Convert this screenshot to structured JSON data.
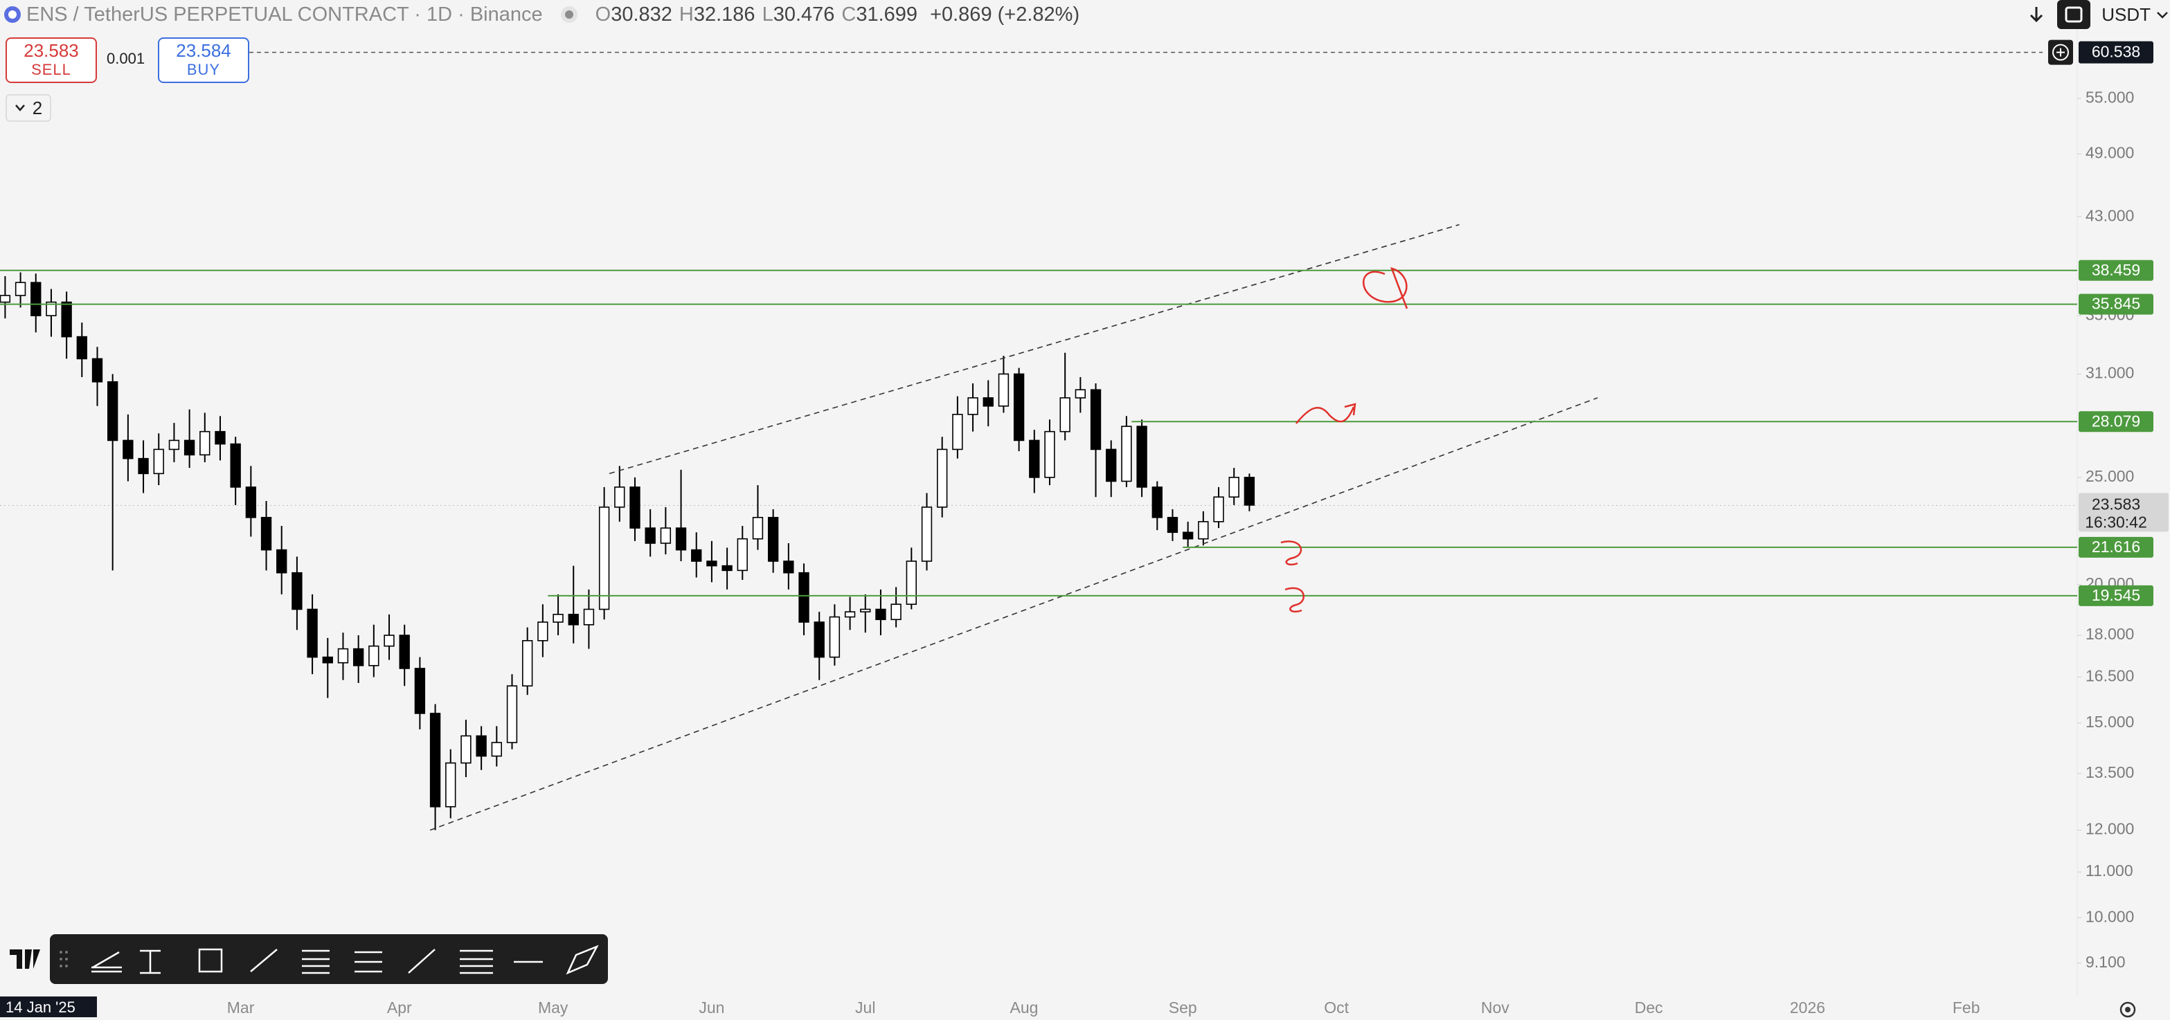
{
  "header": {
    "symbol": "ENS / TetherUS PERPETUAL CONTRACT · 1D · Binance",
    "ohlc": [
      {
        "label": "O",
        "value": "30.832"
      },
      {
        "label": "H",
        "value": "32.186"
      },
      {
        "label": "L",
        "value": "30.476"
      },
      {
        "label": "C",
        "value": "31.699"
      }
    ],
    "change": "+0.869 (+2.82%)",
    "currency": "USDT"
  },
  "order_panel": {
    "sell_price": "23.583",
    "sell_label": "SELL",
    "quantity": "0.001",
    "buy_price": "23.584",
    "buy_label": "BUY"
  },
  "indicator_toggle": "2",
  "chart_data": {
    "type": "candlestick",
    "log_scale": true,
    "grid": false,
    "up_color": "#ffffff",
    "down_color": "#000000",
    "level_color": "#4c9a3e",
    "xlim": [
      "2025-01-13",
      "2026-02-22"
    ],
    "xticks": [
      {
        "value": "2025-01-14",
        "label": "14 Jan '25"
      },
      {
        "value": "2025-03-01",
        "label": "Mar"
      },
      {
        "value": "2025-04-01",
        "label": "Apr"
      },
      {
        "value": "2025-05-01",
        "label": "May"
      },
      {
        "value": "2025-06-01",
        "label": "Jun"
      },
      {
        "value": "2025-07-01",
        "label": "Jul"
      },
      {
        "value": "2025-08-01",
        "label": "Aug"
      },
      {
        "value": "2025-09-01",
        "label": "Sep"
      },
      {
        "value": "2025-10-01",
        "label": "Oct"
      },
      {
        "value": "2025-11-01",
        "label": "Nov"
      },
      {
        "value": "2025-12-01",
        "label": "Dec"
      },
      {
        "value": "2026-01-01",
        "label": "2026"
      },
      {
        "value": "2026-02-01",
        "label": "Feb"
      }
    ],
    "ylim": [
      8.49,
      67.5
    ],
    "yticks": [
      {
        "value": 9.1,
        "label": "9.100"
      },
      {
        "value": 10,
        "label": "10.000"
      },
      {
        "value": 11,
        "label": "11.000"
      },
      {
        "value": 12,
        "label": "12.000"
      },
      {
        "value": 13.5,
        "label": "13.500"
      },
      {
        "value": 15,
        "label": "15.000"
      },
      {
        "value": 16.5,
        "label": "16.500"
      },
      {
        "value": 18,
        "label": "18.000"
      },
      {
        "value": 20,
        "label": "20.000"
      },
      {
        "value": 25,
        "label": "25.000"
      },
      {
        "value": 31,
        "label": "31.000"
      },
      {
        "value": 35,
        "label": "35.000"
      },
      {
        "value": 43,
        "label": "43.000"
      },
      {
        "value": 49,
        "label": "49.000"
      },
      {
        "value": 55,
        "label": "55.000"
      }
    ],
    "x": [
      "2025-01-14",
      "2025-01-17",
      "2025-01-20",
      "2025-01-23",
      "2025-01-26",
      "2025-01-29",
      "2025-02-01",
      "2025-02-04",
      "2025-02-07",
      "2025-02-10",
      "2025-02-13",
      "2025-02-16",
      "2025-02-19",
      "2025-02-22",
      "2025-02-25",
      "2025-02-28",
      "2025-03-03",
      "2025-03-06",
      "2025-03-09",
      "2025-03-12",
      "2025-03-15",
      "2025-03-18",
      "2025-03-21",
      "2025-03-24",
      "2025-03-27",
      "2025-03-30",
      "2025-04-02",
      "2025-04-05",
      "2025-04-08",
      "2025-04-11",
      "2025-04-14",
      "2025-04-17",
      "2025-04-20",
      "2025-04-23",
      "2025-04-26",
      "2025-04-29",
      "2025-05-02",
      "2025-05-05",
      "2025-05-08",
      "2025-05-11",
      "2025-05-14",
      "2025-05-17",
      "2025-05-20",
      "2025-05-23",
      "2025-05-26",
      "2025-05-29",
      "2025-06-01",
      "2025-06-04",
      "2025-06-07",
      "2025-06-10",
      "2025-06-13",
      "2025-06-16",
      "2025-06-19",
      "2025-06-22",
      "2025-06-25",
      "2025-06-28",
      "2025-07-01",
      "2025-07-04",
      "2025-07-07",
      "2025-07-10",
      "2025-07-13",
      "2025-07-16",
      "2025-07-19",
      "2025-07-22",
      "2025-07-25",
      "2025-07-28",
      "2025-07-31",
      "2025-08-03",
      "2025-08-06",
      "2025-08-09",
      "2025-08-12",
      "2025-08-15",
      "2025-08-18",
      "2025-08-21",
      "2025-08-24",
      "2025-08-27",
      "2025-08-30",
      "2025-09-02",
      "2025-09-05",
      "2025-09-08",
      "2025-09-11",
      "2025-09-14"
    ],
    "open": [
      36.0,
      36.5,
      37.5,
      35.0,
      36.0,
      33.5,
      32.0,
      30.5,
      27.0,
      26.0,
      25.2,
      26.5,
      27.0,
      26.2,
      27.5,
      26.8,
      24.5,
      23.0,
      21.5,
      20.5,
      19.0,
      17.2,
      17.0,
      17.5,
      16.9,
      17.6,
      18.0,
      16.8,
      15.3,
      12.6,
      13.8,
      14.6,
      14.0,
      14.4,
      16.2,
      17.8,
      18.5,
      18.8,
      18.4,
      19.0,
      23.5,
      24.5,
      22.5,
      21.8,
      22.5,
      21.5,
      21.0,
      20.8,
      20.6,
      22.0,
      23.0,
      21.0,
      20.5,
      18.5,
      17.2,
      18.7,
      18.9,
      19.0,
      18.6,
      19.2,
      21.0,
      23.5,
      26.5,
      28.5,
      29.5,
      29.0,
      31.0,
      27.0,
      25.0,
      27.5,
      29.5,
      30.0,
      26.5,
      24.8,
      27.8,
      24.5,
      23.0,
      22.3,
      22.0,
      22.8,
      24.0,
      25.0
    ],
    "high": [
      38.0,
      38.3,
      38.2,
      37.0,
      36.8,
      34.5,
      32.8,
      31.0,
      28.5,
      27.0,
      27.4,
      28.0,
      28.8,
      28.6,
      28.4,
      27.2,
      25.6,
      23.8,
      22.6,
      21.2,
      19.6,
      17.9,
      18.1,
      18.0,
      18.4,
      18.8,
      18.4,
      17.2,
      15.6,
      14.2,
      15.1,
      14.9,
      14.9,
      16.6,
      18.3,
      19.2,
      19.6,
      20.8,
      19.8,
      24.5,
      25.6,
      25.0,
      23.4,
      23.5,
      25.4,
      22.3,
      21.9,
      21.6,
      22.6,
      24.6,
      23.4,
      21.8,
      20.9,
      18.9,
      19.2,
      19.5,
      19.6,
      19.8,
      19.9,
      21.6,
      24.2,
      27.2,
      29.6,
      30.4,
      30.6,
      32.2,
      31.4,
      27.6,
      28.2,
      32.4,
      30.8,
      30.4,
      27.0,
      28.4,
      28.2,
      24.8,
      23.4,
      22.8,
      23.3,
      24.5,
      25.5,
      25.2
    ],
    "low": [
      34.8,
      35.6,
      33.8,
      33.5,
      32.0,
      30.8,
      29.0,
      20.6,
      24.8,
      24.2,
      24.6,
      25.8,
      25.5,
      25.8,
      25.9,
      23.6,
      22.1,
      20.6,
      19.6,
      18.2,
      16.6,
      15.8,
      16.4,
      16.3,
      16.5,
      17.1,
      16.2,
      14.8,
      12.0,
      12.3,
      13.4,
      13.6,
      13.7,
      14.2,
      15.9,
      17.2,
      18.0,
      17.7,
      17.5,
      18.6,
      22.8,
      21.9,
      21.2,
      21.3,
      21.0,
      20.3,
      20.1,
      19.8,
      20.2,
      21.5,
      20.5,
      19.8,
      18.0,
      16.4,
      16.9,
      18.2,
      18.1,
      18.0,
      18.3,
      19.0,
      20.6,
      23.0,
      26.0,
      27.5,
      27.8,
      28.6,
      26.4,
      24.2,
      24.6,
      27.0,
      28.6,
      24.0,
      24.0,
      24.5,
      24.0,
      22.4,
      21.9,
      21.6,
      21.7,
      22.5,
      23.6,
      23.3
    ],
    "close": [
      36.5,
      37.5,
      35.0,
      36.0,
      33.5,
      32.0,
      30.5,
      27.0,
      26.0,
      25.2,
      26.5,
      27.0,
      26.2,
      27.5,
      26.8,
      24.5,
      23.0,
      21.5,
      20.5,
      19.0,
      17.2,
      17.0,
      17.5,
      16.9,
      17.6,
      18.0,
      16.8,
      15.3,
      12.6,
      13.8,
      14.6,
      14.0,
      14.4,
      16.2,
      17.8,
      18.5,
      18.8,
      18.4,
      19.0,
      23.5,
      24.5,
      22.5,
      21.8,
      22.5,
      21.5,
      21.0,
      20.8,
      20.6,
      22.0,
      23.0,
      21.0,
      20.5,
      18.5,
      17.2,
      18.7,
      18.9,
      19.0,
      18.6,
      19.2,
      21.0,
      23.5,
      26.5,
      28.5,
      29.5,
      29.0,
      31.0,
      27.0,
      25.0,
      27.5,
      29.5,
      30.0,
      26.5,
      24.8,
      27.8,
      24.5,
      23.0,
      22.3,
      22.0,
      22.8,
      24.0,
      25.0,
      23.6
    ],
    "levels": [
      {
        "value": 38.459
      },
      {
        "value": 35.845
      },
      {
        "value": 28.079,
        "from": "2025-08-22"
      },
      {
        "value": 21.616,
        "from": "2025-09-01"
      },
      {
        "value": 19.545,
        "from": "2025-04-30"
      }
    ],
    "trendlines": [
      {
        "x": [
          "2025-05-12",
          "2025-10-25"
        ],
        "y": [
          25.2,
          42.3
        ]
      },
      {
        "x": [
          "2025-04-07",
          "2025-11-21"
        ],
        "y": [
          12.0,
          29.5
        ]
      }
    ],
    "order_line": 60.538,
    "last_price": 23.583,
    "countdown": "16:30:42"
  }
}
